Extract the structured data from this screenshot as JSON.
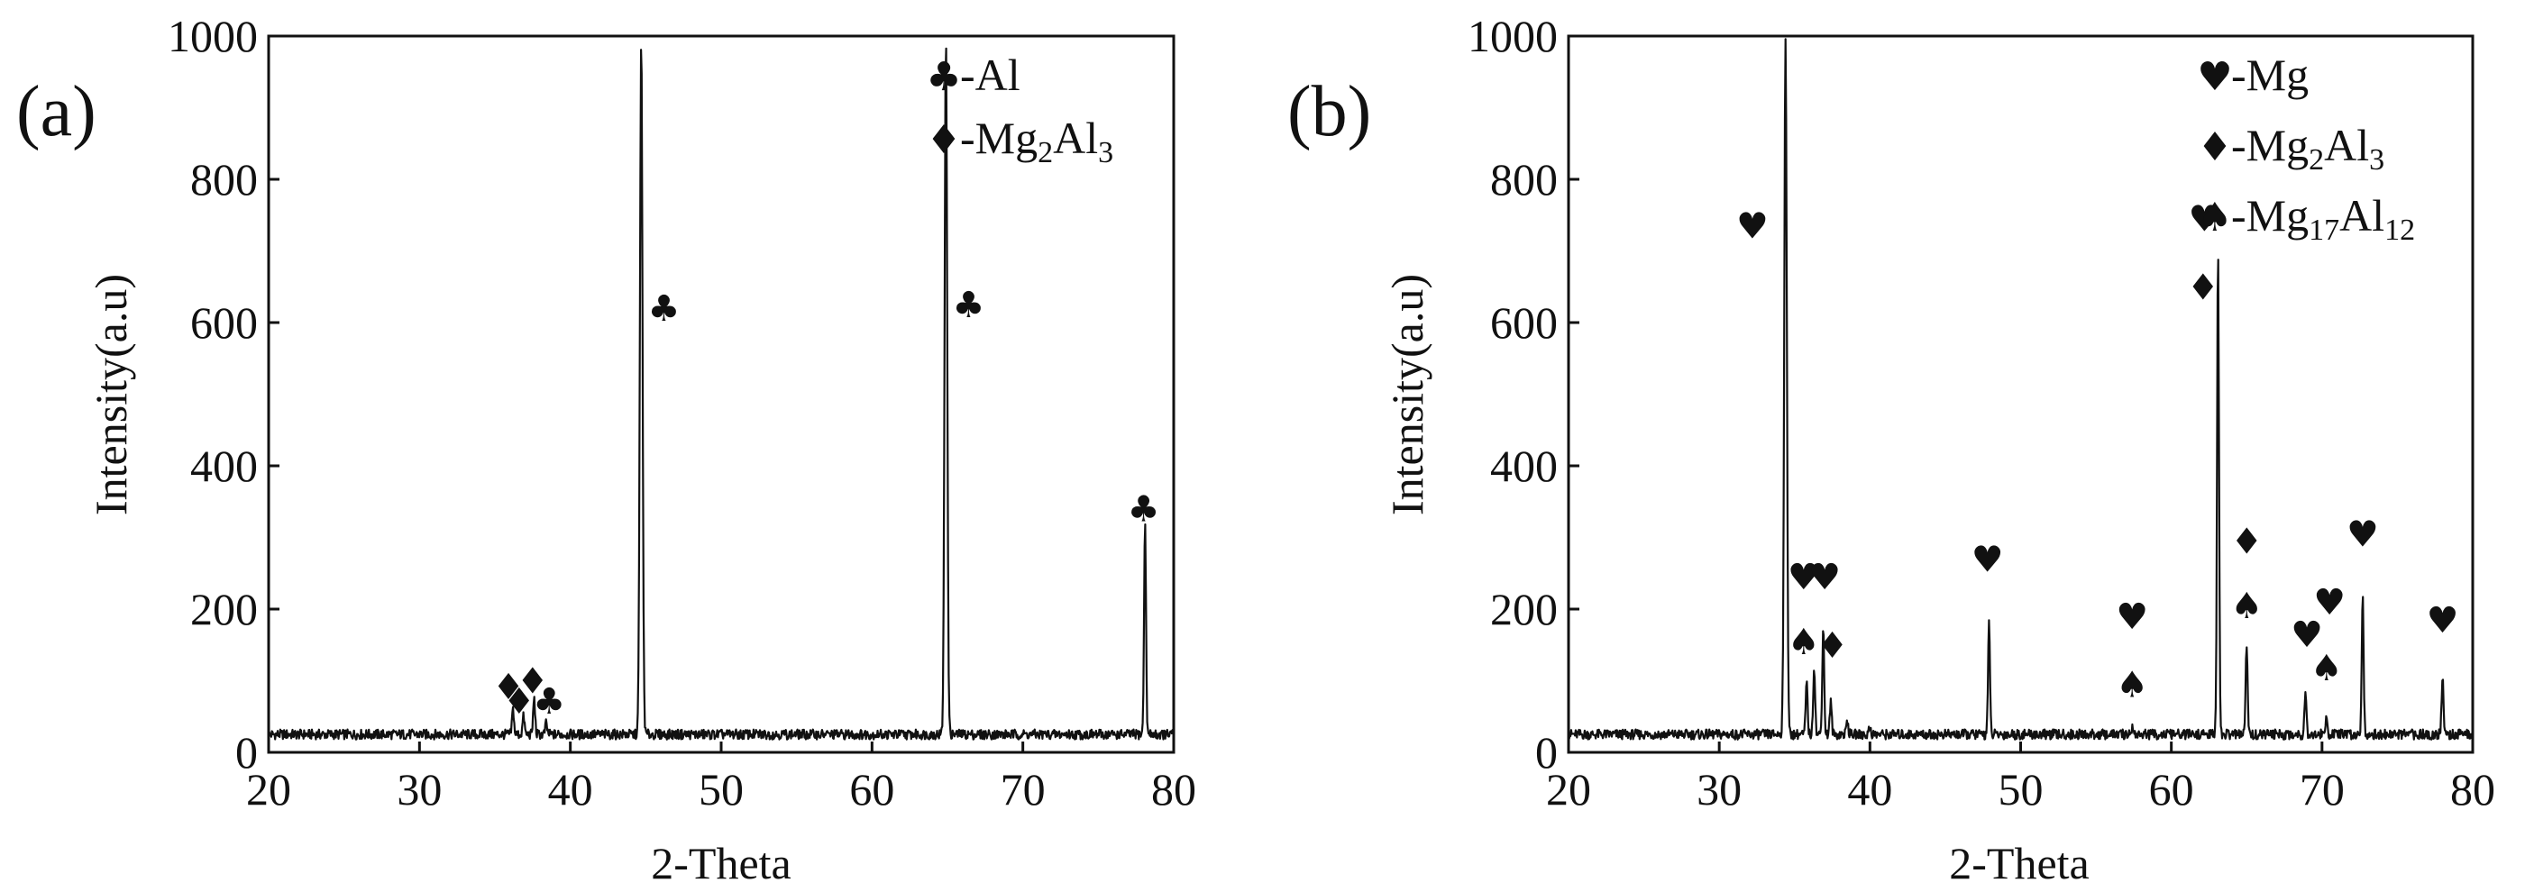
{
  "chart_data": [
    {
      "type": "line",
      "panel_label": "(a)",
      "xlabel": "2-Theta",
      "ylabel": "Intensity(a.u)",
      "xlim": [
        20,
        80
      ],
      "ylim": [
        0,
        1000
      ],
      "xticks": [
        "20",
        "30",
        "40",
        "50",
        "60",
        "70",
        "80"
      ],
      "yticks": [
        "0",
        "200",
        "400",
        "600",
        "800",
        "1000"
      ],
      "legend": [
        {
          "symbol": "♣",
          "label": "-Al",
          "sub": ""
        },
        {
          "symbol": "♦",
          "label": "-Mg",
          "parts": [
            "-Mg",
            "2",
            "Al",
            "3"
          ]
        }
      ],
      "baseline": 25,
      "peaks": [
        {
          "x": 36.2,
          "y": 60
        },
        {
          "x": 36.9,
          "y": 50
        },
        {
          "x": 37.6,
          "y": 75
        },
        {
          "x": 38.4,
          "y": 40
        },
        {
          "x": 44.7,
          "y": 1000
        },
        {
          "x": 64.9,
          "y": 1000
        },
        {
          "x": 78.1,
          "y": 320
        }
      ],
      "markers": [
        {
          "symbol": "♦",
          "x": 35.9,
          "y": 92
        },
        {
          "symbol": "♦",
          "x": 36.6,
          "y": 72
        },
        {
          "symbol": "♦",
          "x": 37.5,
          "y": 100
        },
        {
          "symbol": "♣",
          "x": 38.6,
          "y": 72
        },
        {
          "symbol": "♣",
          "x": 46.2,
          "y": 620
        },
        {
          "symbol": "♣",
          "x": 66.4,
          "y": 625
        },
        {
          "symbol": "♣",
          "x": 78.0,
          "y": 340
        }
      ]
    },
    {
      "type": "line",
      "panel_label": "(b)",
      "xlabel": "2-Theta",
      "ylabel": "Intensity(a.u)",
      "xlim": [
        20,
        80
      ],
      "ylim": [
        0,
        1000
      ],
      "xticks": [
        "20",
        "30",
        "40",
        "50",
        "60",
        "70",
        "80"
      ],
      "yticks": [
        "0",
        "200",
        "400",
        "600",
        "800",
        "1000"
      ],
      "legend": [
        {
          "symbol": "♥",
          "label": "-Mg",
          "parts": [
            "-Mg"
          ]
        },
        {
          "symbol": "♦",
          "label": "-Mg",
          "parts": [
            "-Mg",
            "2",
            "Al",
            "3"
          ]
        },
        {
          "symbol": "♠",
          "label": "-Mg",
          "parts": [
            "-Mg",
            "17",
            "Al",
            "12"
          ]
        }
      ],
      "baseline": 25,
      "peaks": [
        {
          "x": 34.4,
          "y": 1000
        },
        {
          "x": 35.8,
          "y": 95
        },
        {
          "x": 36.3,
          "y": 120
        },
        {
          "x": 36.9,
          "y": 175
        },
        {
          "x": 37.4,
          "y": 70
        },
        {
          "x": 38.5,
          "y": 45
        },
        {
          "x": 40.0,
          "y": 35
        },
        {
          "x": 47.9,
          "y": 180
        },
        {
          "x": 57.4,
          "y": 35
        },
        {
          "x": 63.1,
          "y": 710
        },
        {
          "x": 65.0,
          "y": 150
        },
        {
          "x": 68.9,
          "y": 85
        },
        {
          "x": 70.3,
          "y": 50
        },
        {
          "x": 72.7,
          "y": 220
        },
        {
          "x": 78.0,
          "y": 105
        }
      ],
      "markers": [
        {
          "symbol": "♥",
          "x": 32.2,
          "y": 735
        },
        {
          "symbol": "♥",
          "x": 35.6,
          "y": 245
        },
        {
          "symbol": "♥",
          "x": 37.0,
          "y": 245
        },
        {
          "symbol": "♠",
          "x": 35.6,
          "y": 155
        },
        {
          "symbol": "♦",
          "x": 37.5,
          "y": 150
        },
        {
          "symbol": "♥",
          "x": 47.8,
          "y": 270
        },
        {
          "symbol": "♥",
          "x": 57.4,
          "y": 190
        },
        {
          "symbol": "♠",
          "x": 57.4,
          "y": 95
        },
        {
          "symbol": "♥",
          "x": 62.2,
          "y": 745
        },
        {
          "symbol": "♦",
          "x": 62.1,
          "y": 650
        },
        {
          "symbol": "♦",
          "x": 65.0,
          "y": 295
        },
        {
          "symbol": "♠",
          "x": 65.0,
          "y": 205
        },
        {
          "symbol": "♥",
          "x": 70.5,
          "y": 210
        },
        {
          "symbol": "♥",
          "x": 69.0,
          "y": 165
        },
        {
          "symbol": "♠",
          "x": 70.3,
          "y": 118
        },
        {
          "symbol": "♥",
          "x": 72.7,
          "y": 305
        },
        {
          "symbol": "♥",
          "x": 78.0,
          "y": 185
        }
      ]
    }
  ]
}
